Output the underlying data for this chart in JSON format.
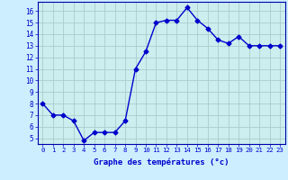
{
  "hours": [
    0,
    1,
    2,
    3,
    4,
    5,
    6,
    7,
    8,
    9,
    10,
    11,
    12,
    13,
    14,
    15,
    16,
    17,
    18,
    19,
    20,
    21,
    22,
    23
  ],
  "temps": [
    8.0,
    7.0,
    7.0,
    6.5,
    4.8,
    5.5,
    5.5,
    5.5,
    6.5,
    11.0,
    12.5,
    15.0,
    15.2,
    15.2,
    16.3,
    15.2,
    14.5,
    13.5,
    13.2,
    13.8,
    13.0,
    13.0,
    13.0,
    13.0
  ],
  "line_color": "#0000cc",
  "marker": "D",
  "marker_size": 2.5,
  "bg_color": "#cceeff",
  "grid_color": "#aacccc",
  "xlabel": "Graphe des températures (°c)",
  "ylim": [
    4.5,
    16.8
  ],
  "yticks": [
    5,
    6,
    7,
    8,
    9,
    10,
    11,
    12,
    13,
    14,
    15,
    16
  ],
  "xticks": [
    0,
    1,
    2,
    3,
    4,
    5,
    6,
    7,
    8,
    9,
    10,
    11,
    12,
    13,
    14,
    15,
    16,
    17,
    18,
    19,
    20,
    21,
    22,
    23
  ],
  "xtick_labels": [
    "0",
    "1",
    "2",
    "3",
    "4",
    "5",
    "6",
    "7",
    "8",
    "9",
    "10",
    "11",
    "12",
    "13",
    "14",
    "15",
    "16",
    "17",
    "18",
    "19",
    "20",
    "21",
    "22",
    "23"
  ],
  "tick_color": "#0000cc",
  "label_color": "#0000cc",
  "spine_color": "#0000aa",
  "axis_bg": "#cceeee"
}
